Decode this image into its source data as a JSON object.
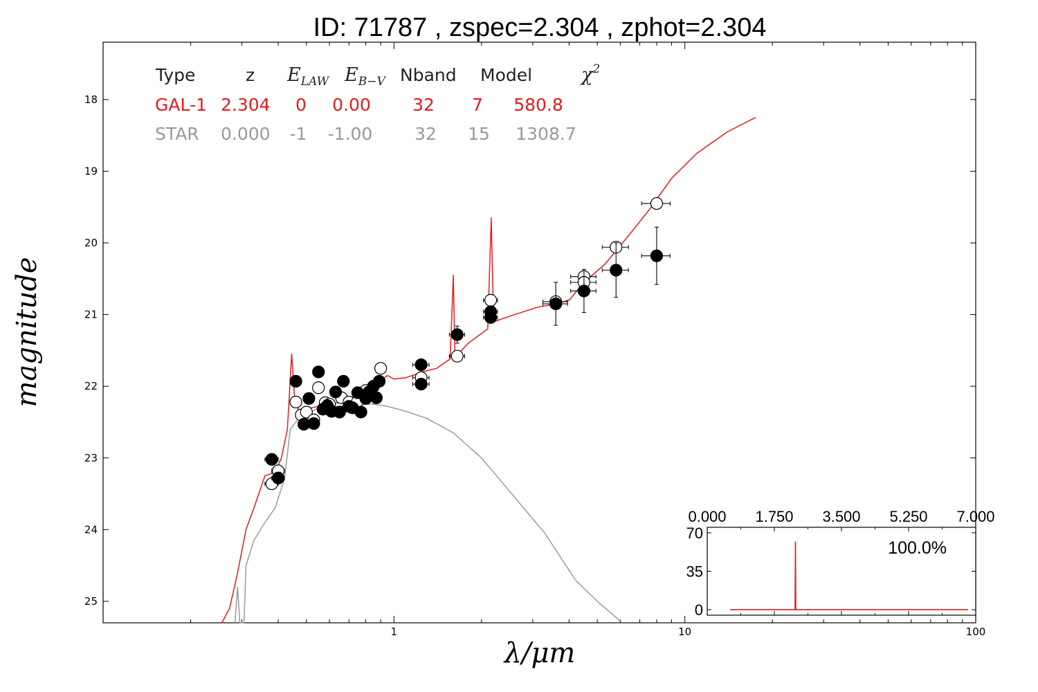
{
  "title": "ID:  71787 , zspec=2.304 , zphot=2.304",
  "colors": {
    "gal": "#e41a1c",
    "star": "#999999"
  },
  "table": {
    "headers": [
      "Type",
      "z",
      "E_LAW",
      "E_B-V",
      "Nband",
      "Model",
      "χ2"
    ],
    "rows": [
      {
        "name": "gal",
        "color": "#e41a1c",
        "cells": [
          "GAL-1",
          "2.304",
          "0",
          "0.00",
          "32",
          "7",
          "580.8"
        ]
      },
      {
        "name": "star",
        "color": "#999999",
        "cells": [
          "STAR",
          "0.000",
          "-1",
          "-1.00",
          "32",
          "15",
          "1308.7"
        ]
      }
    ]
  },
  "chart_data": {
    "type": "scatter",
    "title": "ID:  71787 , zspec=2.304 , zphot=2.304",
    "xlabel": "λ/μm",
    "ylabel": "magnitude",
    "xscale": "log",
    "xlim": [
      0.1,
      100
    ],
    "ylim": [
      25.3,
      17.2
    ],
    "x_ticks": [
      {
        "value": 1,
        "label": "1"
      },
      {
        "value": 10,
        "label": "10"
      },
      {
        "value": 100,
        "label": "100"
      }
    ],
    "y_ticks": [
      {
        "value": 18,
        "label": "18"
      },
      {
        "value": 19,
        "label": "19"
      },
      {
        "value": 20,
        "label": "20"
      },
      {
        "value": 21,
        "label": "21"
      },
      {
        "value": 22,
        "label": "22"
      },
      {
        "value": 23,
        "label": "23"
      },
      {
        "value": 24,
        "label": "24"
      },
      {
        "value": 25,
        "label": "25"
      }
    ],
    "series": [
      {
        "kind": "line",
        "name": "GAL-1",
        "color": "#e41a1c",
        "points": [
          [
            0.256,
            25.3
          ],
          [
            0.272,
            25.1
          ],
          [
            0.29,
            24.6
          ],
          [
            0.31,
            24.0
          ],
          [
            0.33,
            23.7
          ],
          [
            0.36,
            23.25
          ],
          [
            0.39,
            23.2
          ],
          [
            0.41,
            23.0
          ],
          [
            0.43,
            22.6
          ],
          [
            0.445,
            21.55
          ],
          [
            0.455,
            22.15
          ],
          [
            0.475,
            22.4
          ],
          [
            0.52,
            22.3
          ],
          [
            0.6,
            22.25
          ],
          [
            0.7,
            22.2
          ],
          [
            0.8,
            22.1
          ],
          [
            0.88,
            21.95
          ],
          [
            0.95,
            21.85
          ],
          [
            1.0,
            21.9
          ],
          [
            1.1,
            21.88
          ],
          [
            1.25,
            21.8
          ],
          [
            1.4,
            21.75
          ],
          [
            1.56,
            21.62
          ],
          [
            1.6,
            20.45
          ],
          [
            1.62,
            21.6
          ],
          [
            1.8,
            21.4
          ],
          [
            2.1,
            21.2
          ],
          [
            2.16,
            19.65
          ],
          [
            2.2,
            21.1
          ],
          [
            2.6,
            21.0
          ],
          [
            3.1,
            20.9
          ],
          [
            3.6,
            20.85
          ],
          [
            4.0,
            20.8
          ],
          [
            4.5,
            20.55
          ],
          [
            5.3,
            20.3
          ],
          [
            6.4,
            19.9
          ],
          [
            7.5,
            19.55
          ],
          [
            9.0,
            19.1
          ],
          [
            11,
            18.75
          ],
          [
            14,
            18.45
          ],
          [
            17.5,
            18.25
          ]
        ]
      },
      {
        "kind": "line",
        "name": "STAR",
        "color": "#999999",
        "points": [
          [
            0.284,
            25.3
          ],
          [
            0.29,
            24.8
          ],
          [
            0.295,
            25.3
          ],
          [
            0.305,
            25.3
          ],
          [
            0.31,
            24.5
          ],
          [
            0.33,
            24.15
          ],
          [
            0.36,
            23.9
          ],
          [
            0.39,
            23.7
          ],
          [
            0.42,
            23.3
          ],
          [
            0.44,
            22.6
          ],
          [
            0.47,
            22.45
          ],
          [
            0.55,
            22.3
          ],
          [
            0.65,
            22.28
          ],
          [
            0.75,
            22.25
          ],
          [
            0.85,
            22.25
          ],
          [
            0.95,
            22.28
          ],
          [
            1.1,
            22.35
          ],
          [
            1.3,
            22.45
          ],
          [
            1.6,
            22.65
          ],
          [
            2.0,
            23.0
          ],
          [
            2.6,
            23.55
          ],
          [
            3.3,
            24.05
          ],
          [
            4.2,
            24.7
          ],
          [
            5.0,
            25.0
          ],
          [
            6.1,
            25.3
          ]
        ]
      },
      {
        "kind": "points",
        "name": "observed",
        "fill": "#000000",
        "points": [
          [
            0.38,
            23.02,
            0.02,
            0.05
          ],
          [
            0.4,
            23.28,
            0.02,
            0.05
          ],
          [
            0.46,
            21.93,
            0.02,
            0.05
          ],
          [
            0.49,
            22.53,
            0.02,
            0.05
          ],
          [
            0.51,
            22.17,
            0.02,
            0.05
          ],
          [
            0.53,
            22.52,
            0.02,
            0.05
          ],
          [
            0.55,
            21.8,
            0.02,
            0.05
          ],
          [
            0.57,
            22.32,
            0.02,
            0.05
          ],
          [
            0.59,
            22.27,
            0.02,
            0.05
          ],
          [
            0.61,
            22.35,
            0.02,
            0.05
          ],
          [
            0.63,
            22.08,
            0.02,
            0.05
          ],
          [
            0.65,
            22.36,
            0.02,
            0.05
          ],
          [
            0.67,
            21.93,
            0.02,
            0.05
          ],
          [
            0.7,
            22.28,
            0.02,
            0.05
          ],
          [
            0.72,
            22.3,
            0.02,
            0.05
          ],
          [
            0.75,
            22.09,
            0.02,
            0.05
          ],
          [
            0.77,
            22.36,
            0.02,
            0.05
          ],
          [
            0.8,
            22.17,
            0.02,
            0.05
          ],
          [
            0.82,
            22.08,
            0.02,
            0.05
          ],
          [
            0.85,
            22.0,
            0.02,
            0.05
          ],
          [
            0.87,
            22.16,
            0.02,
            0.05
          ],
          [
            0.89,
            21.93,
            0.02,
            0.05
          ],
          [
            1.24,
            21.7,
            0.08,
            0.05
          ],
          [
            1.24,
            21.97,
            0.08,
            0.05
          ],
          [
            1.65,
            21.28,
            0.1,
            0.12
          ],
          [
            2.15,
            20.96,
            0.12,
            0.08
          ],
          [
            2.15,
            21.04,
            0.12,
            0.08
          ],
          [
            3.6,
            20.85,
            0.35,
            0.3
          ],
          [
            4.5,
            20.67,
            0.45,
            0.3
          ],
          [
            5.8,
            20.38,
            0.6,
            0.38
          ],
          [
            8.0,
            20.18,
            0.9,
            0.4
          ]
        ]
      },
      {
        "kind": "points",
        "name": "model",
        "fill": "#ffffff",
        "points": [
          [
            0.38,
            23.36,
            0.02,
            0.05
          ],
          [
            0.4,
            23.18,
            0.02,
            0.05
          ],
          [
            0.46,
            22.22,
            0.02,
            0.05
          ],
          [
            0.48,
            22.4,
            0.02,
            0.05
          ],
          [
            0.5,
            22.36,
            0.02,
            0.05
          ],
          [
            0.53,
            22.47,
            0.02,
            0.05
          ],
          [
            0.55,
            22.02,
            0.02,
            0.05
          ],
          [
            0.58,
            22.23,
            0.02,
            0.05
          ],
          [
            0.6,
            22.25,
            0.02,
            0.05
          ],
          [
            0.66,
            22.16,
            0.02,
            0.05
          ],
          [
            0.7,
            22.22,
            0.02,
            0.05
          ],
          [
            0.75,
            22.21,
            0.02,
            0.05
          ],
          [
            0.8,
            22.06,
            0.02,
            0.05
          ],
          [
            0.85,
            22.0,
            0.02,
            0.05
          ],
          [
            0.9,
            21.75,
            0.04,
            0.05
          ],
          [
            1.24,
            21.88,
            0.08,
            0.05
          ],
          [
            1.65,
            21.58,
            0.1,
            0.05
          ],
          [
            2.15,
            20.8,
            0.12,
            0.05
          ],
          [
            3.6,
            20.82,
            0.35,
            0.05
          ],
          [
            4.5,
            20.47,
            0.45,
            0.05
          ],
          [
            4.5,
            20.55,
            0.45,
            0.05
          ],
          [
            5.8,
            20.06,
            0.6,
            0.05
          ],
          [
            8.0,
            19.45,
            0.9,
            0.05
          ]
        ]
      }
    ],
    "inset": {
      "type": "line",
      "xlim": [
        0,
        7
      ],
      "ylim": [
        -5,
        75
      ],
      "x_ticks": [
        "0.000",
        "1.750",
        "3.500",
        "5.250",
        "7.000"
      ],
      "y_ticks": [
        "0",
        "35",
        "70"
      ],
      "annotation": "100.0%",
      "color": "#e41a1c",
      "points": [
        [
          0.6,
          0
        ],
        [
          2.29,
          0
        ],
        [
          2.3,
          62
        ],
        [
          2.31,
          0
        ],
        [
          6.8,
          0
        ]
      ]
    }
  }
}
